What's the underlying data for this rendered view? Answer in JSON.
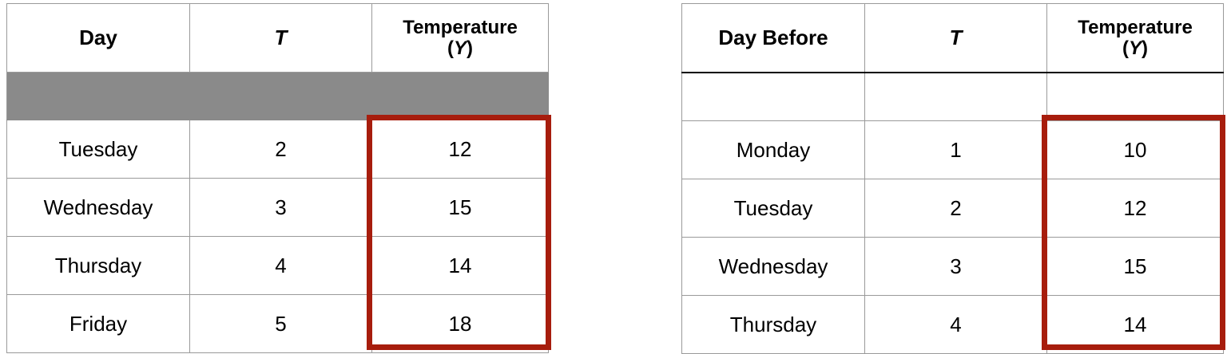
{
  "table_left": {
    "headers": {
      "day": "Day",
      "t": "T",
      "temp_line1": "Temperature",
      "temp_paren_open": "(",
      "temp_var": "Y",
      "temp_paren_close": ")"
    },
    "rows": [
      {
        "day": "Tuesday",
        "t": "2",
        "temp": "12"
      },
      {
        "day": "Wednesday",
        "t": "3",
        "temp": "15"
      },
      {
        "day": "Thursday",
        "t": "4",
        "temp": "14"
      },
      {
        "day": "Friday",
        "t": "5",
        "temp": "18"
      }
    ],
    "shaded_row_color": "#8a8a8a"
  },
  "table_right": {
    "headers": {
      "day": "Day Before",
      "t": "T",
      "temp_line1": "Temperature",
      "temp_paren_open": "(",
      "temp_var": "Y",
      "temp_paren_close": ")"
    },
    "rows": [
      {
        "day": "Monday",
        "t": "1",
        "temp": "10"
      },
      {
        "day": "Tuesday",
        "t": "2",
        "temp": "12"
      },
      {
        "day": "Wednesday",
        "t": "3",
        "temp": "15"
      },
      {
        "day": "Thursday",
        "t": "4",
        "temp": "14"
      }
    ]
  },
  "highlight_color": "#a71d0d"
}
